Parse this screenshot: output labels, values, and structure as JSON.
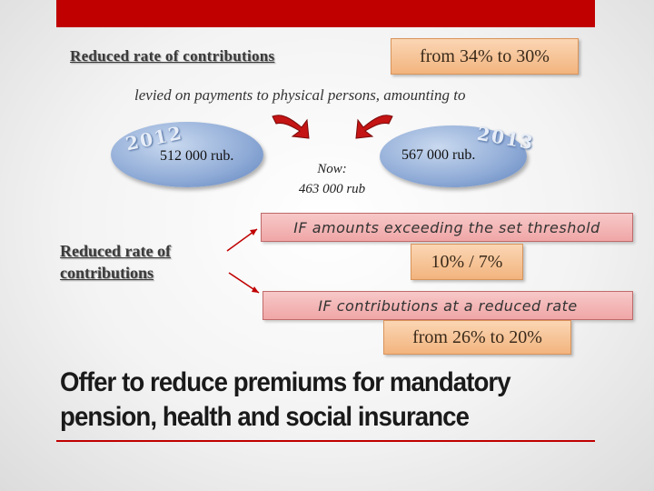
{
  "header": {
    "title": "Reduced  rate of contributions",
    "rate_box": "from 34% to 30%"
  },
  "levied_text": "levied on payments to physical persons, amounting to",
  "years": {
    "left": {
      "year": "2012",
      "amount": "512 000 rub."
    },
    "right": {
      "year": "2013",
      "amount": "567 000 rub."
    }
  },
  "now": {
    "line1": "Now:",
    "line2": "463 000 rub"
  },
  "second_section": {
    "title_line1": "Reduced  rate of",
    "title_line2": "contributions",
    "condition1": "IF amounts exceeding the set threshold",
    "rate1": "10% / 7%",
    "condition2": "IF contributions at a reduced rate",
    "rate2": "from 26% to 20%"
  },
  "offer": {
    "line1": "Offer to reduce premiums for mandatory",
    "line2": "pension, health and social  insurance"
  },
  "colors": {
    "accent": "#c00000",
    "orange_box": "#f2b47e",
    "pink_box": "#f0a6a6",
    "ellipse": "#8eaad6"
  }
}
